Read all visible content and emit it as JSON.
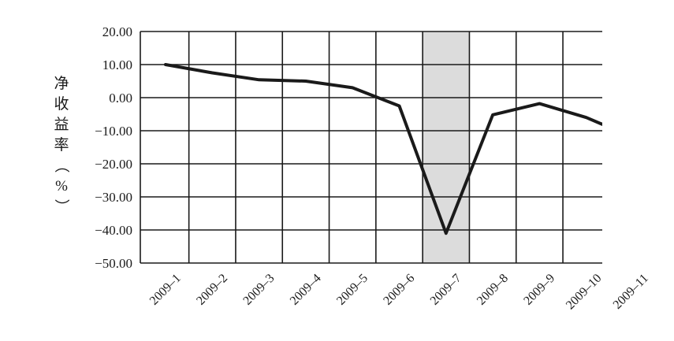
{
  "chart_data": {
    "type": "line",
    "title": "",
    "xlabel": "",
    "ylabel": "净收益率（%）",
    "categories": [
      "2009–1",
      "2009–2",
      "2009–3",
      "2009–4",
      "2009–5",
      "2009–6",
      "2009–7",
      "2009–8",
      "2009–9",
      "2009–10",
      "2009–11"
    ],
    "y_ticks": [
      "20.00",
      "10.00",
      "0.00",
      "−10.00",
      "−20.00",
      "−30.00",
      "−40.00",
      "−50.00"
    ],
    "ylim": [
      -50,
      20
    ],
    "grid": true,
    "highlight_category": "2009–7",
    "colors": {
      "line": "#1a1a1a",
      "highlight": "#dcdcdc",
      "grid": "#1a1a1a"
    },
    "series": [
      {
        "points": [
          {
            "x": "2009–1",
            "y": 10.0
          },
          {
            "x": "2009–2",
            "y": 7.5
          },
          {
            "x": "2009–3",
            "y": 5.4
          },
          {
            "x": "2009–4",
            "y": 5.0
          },
          {
            "x": "2009–5",
            "y": 3.0
          },
          {
            "x": "2009–6",
            "y": -2.5
          },
          {
            "x": "2009–7",
            "y": -41.0
          },
          {
            "x": "2009–8",
            "y": -5.2
          },
          {
            "x": "2009–9",
            "y": -1.8
          },
          {
            "x": "2009–10",
            "y": -6.0
          },
          {
            "x": "2009–11",
            "y": -12.0
          }
        ]
      }
    ]
  }
}
